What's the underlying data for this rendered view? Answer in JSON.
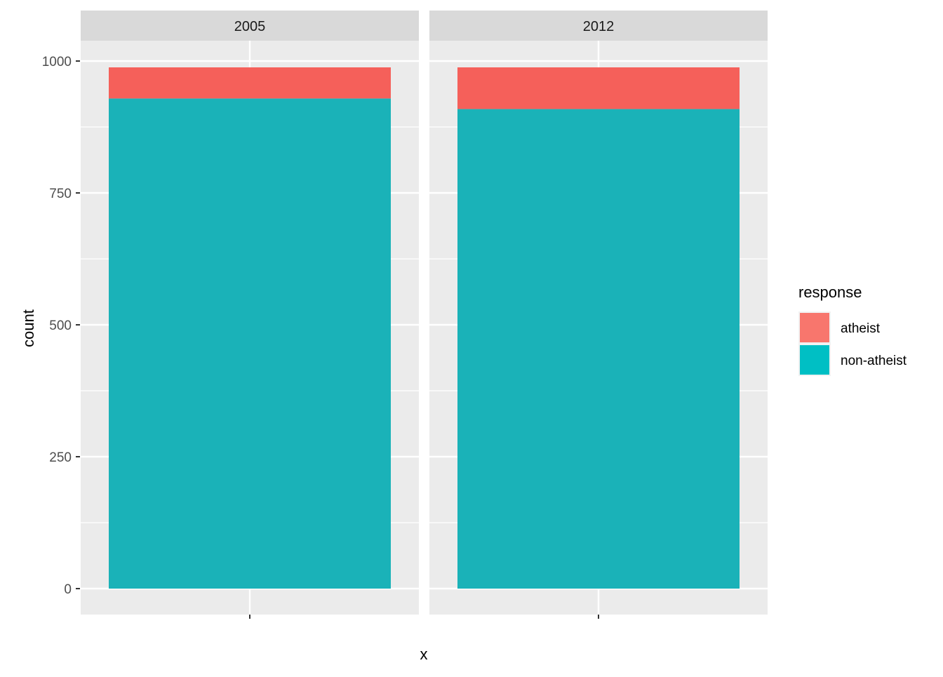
{
  "chart_data": {
    "type": "bar",
    "stacked": true,
    "facet_labels": [
      "2005",
      "2012"
    ],
    "xlabel": "x",
    "ylabel": "count",
    "ylim": [
      0,
      1000
    ],
    "y_ticks": [
      0,
      250,
      500,
      750,
      1000
    ],
    "grid": true,
    "legend": {
      "title": "response",
      "position": "right",
      "entries": [
        {
          "label": "atheist",
          "color": "#F8766D"
        },
        {
          "label": "non-atheist",
          "color": "#00BFC4"
        }
      ]
    },
    "series": [
      {
        "name": "non-atheist",
        "color": "#1AB2B8",
        "values": [
          929,
          909
        ]
      },
      {
        "name": "atheist",
        "color": "#F5605A",
        "values": [
          59,
          79
        ]
      }
    ]
  }
}
